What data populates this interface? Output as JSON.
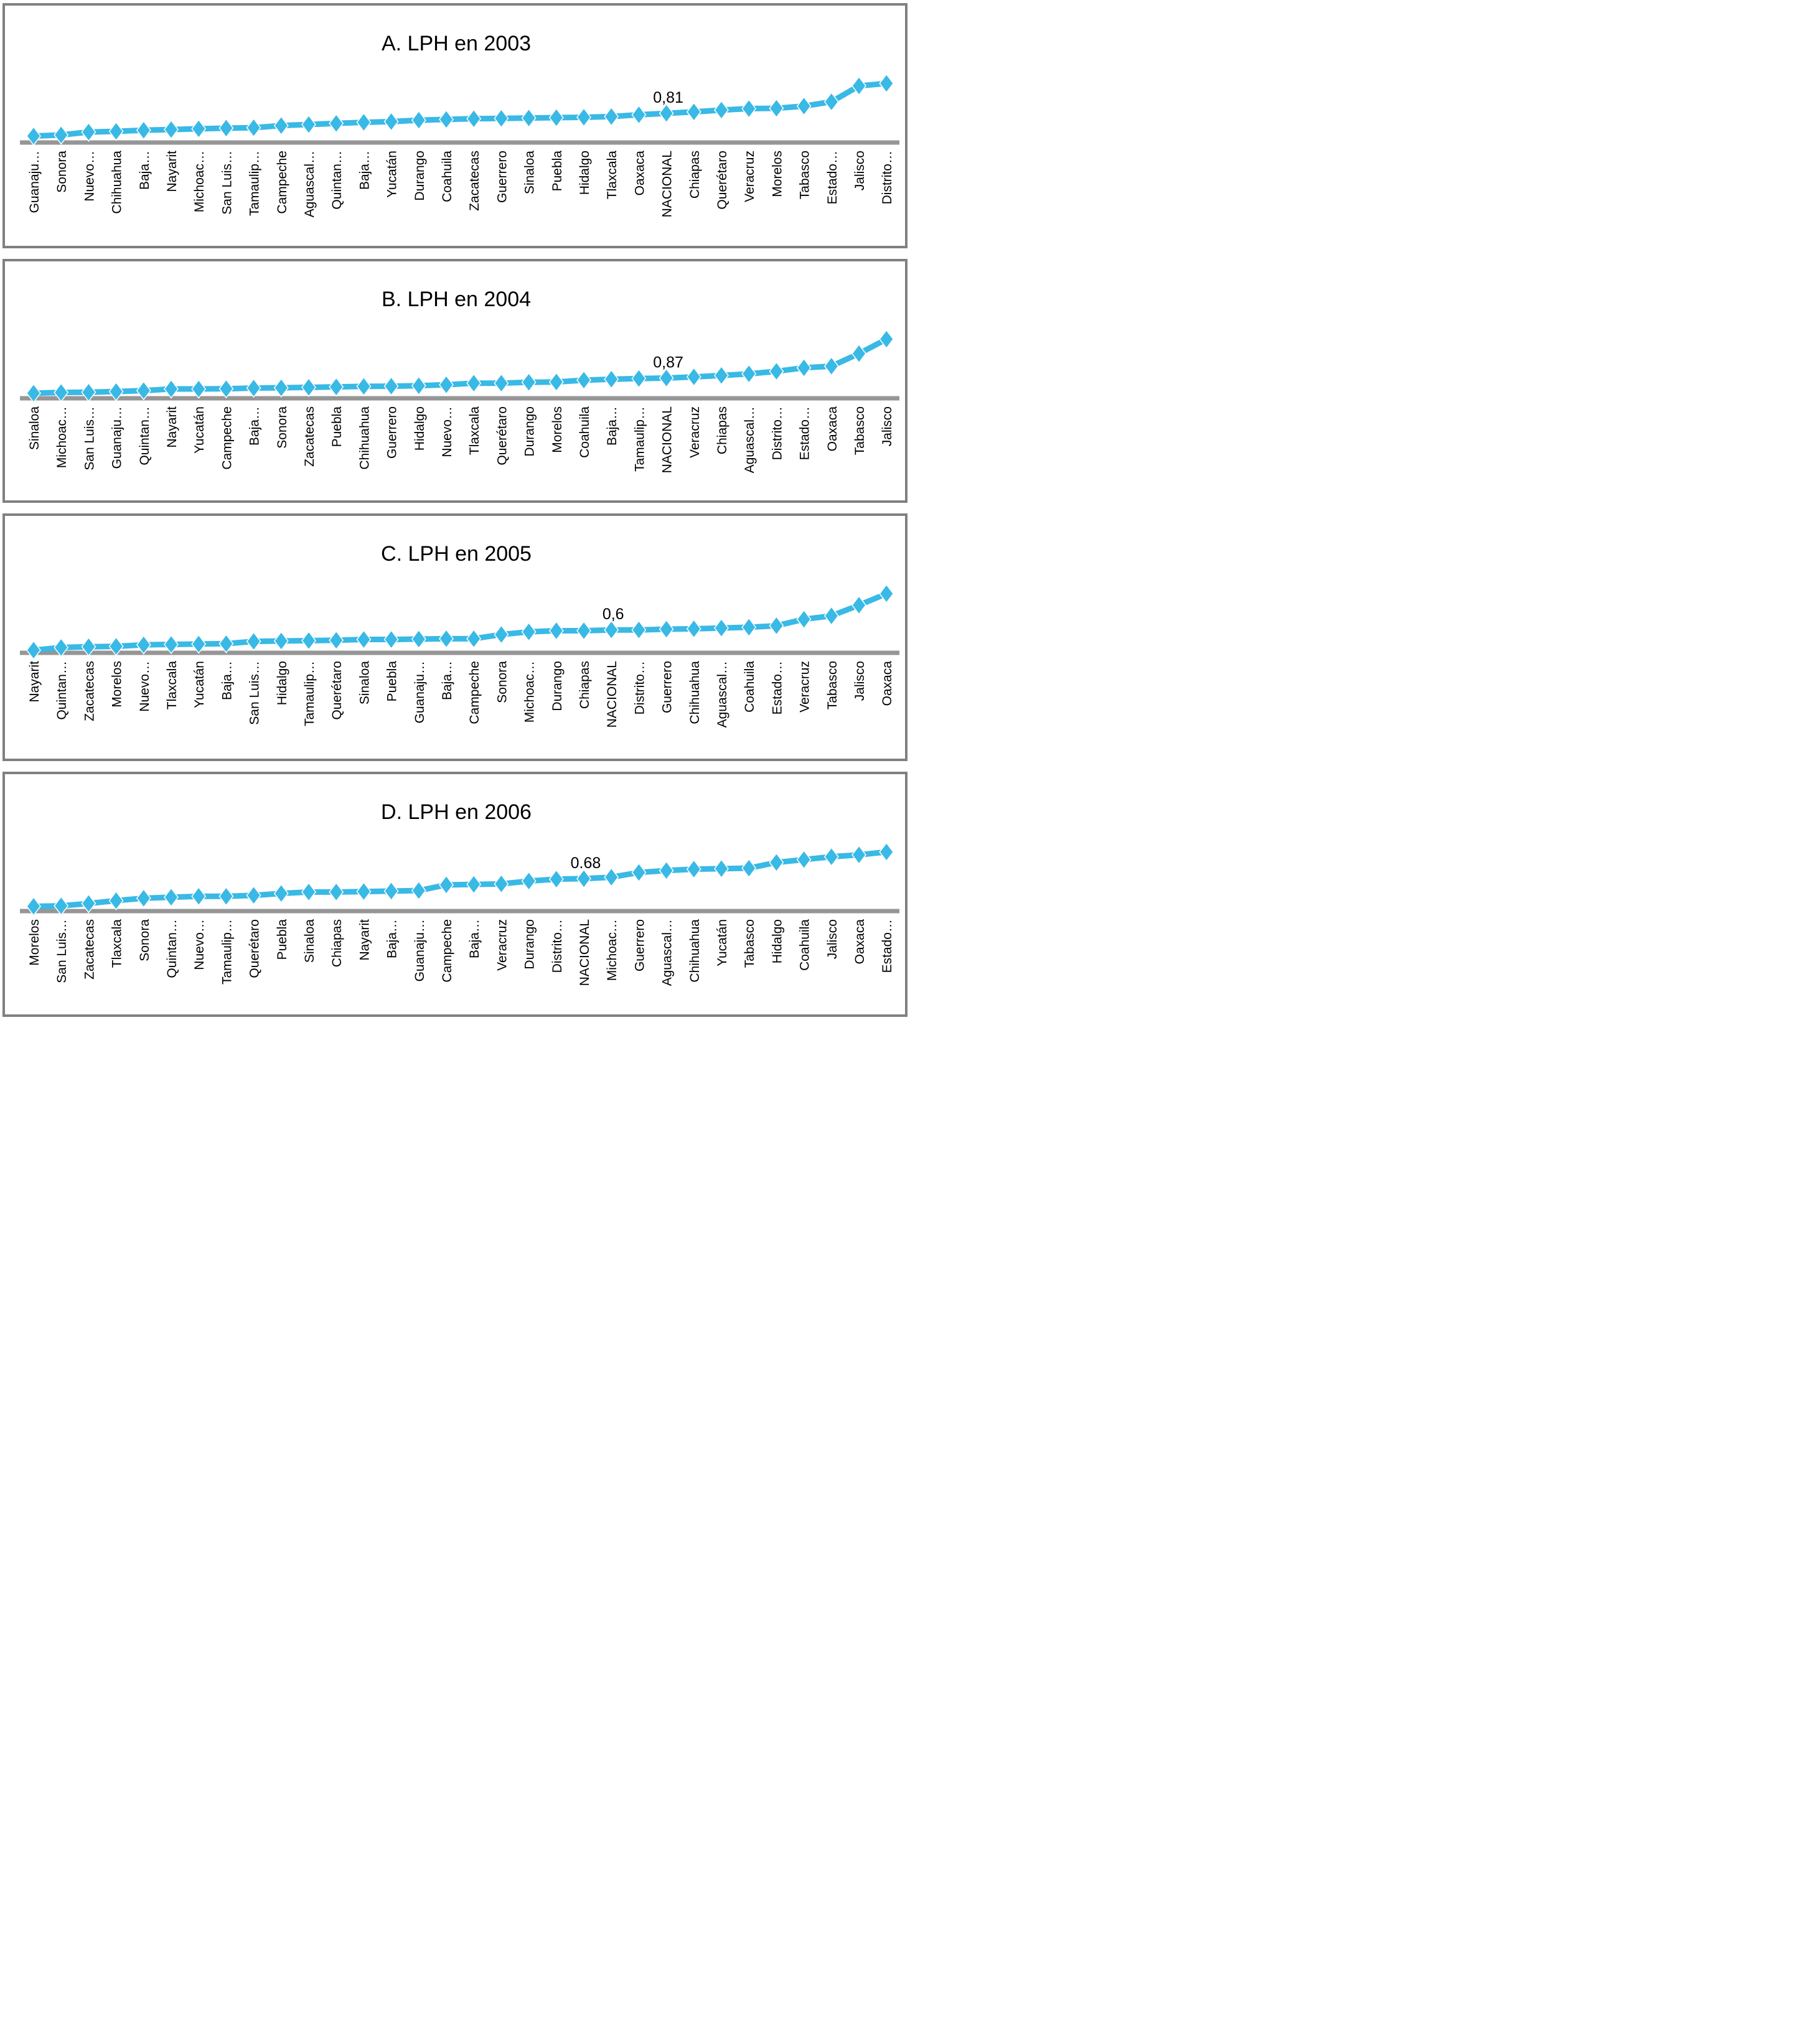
{
  "styles": {
    "line_color": "#39B9E5",
    "marker_outline": "#FFFFFF",
    "axis_color": "#969696",
    "panel_border_color": "#808080",
    "text_color": "#000000",
    "background": "#FFFFFF"
  },
  "chart_data": [
    {
      "type": "line",
      "title": "A. LPH en 2003",
      "xlabel": "",
      "ylabel": "",
      "ylim": [
        0,
        1.7
      ],
      "grid": false,
      "legend": "none",
      "marker": "diamond",
      "y_axis_visible": false,
      "data_label": {
        "text": "0,81",
        "category": "NACIONAL",
        "value": 0.81
      },
      "categories": [
        "Guanaju…",
        "Sonora",
        "Nuevo…",
        "Chihuahua",
        "Baja…",
        "Nayarit",
        "Michoac…",
        "San Luis…",
        "Tamaulip…",
        "Campeche",
        "Aguascal…",
        "Quintan…",
        "Baja…",
        "Yucatán",
        "Durango",
        "Coahuila",
        "Zacatecas",
        "Guerrero",
        "Sinaloa",
        "Puebla",
        "Hidalgo",
        "Tlaxcala",
        "Oaxaca",
        "NACIONAL",
        "Chiapas",
        "Querétaro",
        "Veracruz",
        "Morelos",
        "Tabasco",
        "Estado…",
        "Jalisco",
        "Distrito…"
      ],
      "values": [
        0.18,
        0.21,
        0.29,
        0.31,
        0.34,
        0.36,
        0.38,
        0.4,
        0.41,
        0.47,
        0.5,
        0.53,
        0.56,
        0.58,
        0.62,
        0.64,
        0.66,
        0.67,
        0.68,
        0.69,
        0.7,
        0.72,
        0.77,
        0.81,
        0.85,
        0.9,
        0.94,
        0.95,
        1.01,
        1.13,
        1.57,
        1.64
      ]
    },
    {
      "type": "line",
      "title": "B. LPH en 2004",
      "xlabel": "",
      "ylabel": "",
      "ylim": [
        0,
        2.6
      ],
      "grid": false,
      "legend": "none",
      "marker": "diamond",
      "y_axis_visible": false,
      "data_label": {
        "text": "0,87",
        "category": "NACIONAL",
        "value": 0.87
      },
      "categories": [
        "Sinaloa",
        "Michoac…",
        "San Luis…",
        "Guanaju…",
        "Quintan…",
        "Nayarit",
        "Yucatán",
        "Campeche",
        "Baja…",
        "Sonora",
        "Zacatecas",
        "Puebla",
        "Chihuahua",
        "Guerrero",
        "Hidalgo",
        "Nuevo…",
        "Tlaxcala",
        "Querétaro",
        "Durango",
        "Morelos",
        "Coahuila",
        "Baja…",
        "Tamaulip…",
        "NACIONAL",
        "Veracruz",
        "Chiapas",
        "Aguascal…",
        "Distrito…",
        "Estado…",
        "Oaxaca",
        "Tabasco",
        "Jalisco"
      ],
      "values": [
        0.22,
        0.25,
        0.26,
        0.29,
        0.33,
        0.4,
        0.4,
        0.41,
        0.44,
        0.45,
        0.47,
        0.49,
        0.51,
        0.52,
        0.54,
        0.58,
        0.65,
        0.65,
        0.69,
        0.7,
        0.78,
        0.82,
        0.85,
        0.87,
        0.92,
        0.98,
        1.05,
        1.16,
        1.31,
        1.38,
        1.92,
        2.54
      ]
    },
    {
      "type": "line",
      "title": "C. LPH en 2005",
      "xlabel": "",
      "ylabel": "",
      "ylim": [
        0,
        1.6
      ],
      "grid": false,
      "legend": "none",
      "marker": "diamond",
      "y_axis_visible": false,
      "data_label": {
        "text": "0,6",
        "category": "NACIONAL",
        "value": 0.6
      },
      "categories": [
        "Nayarit",
        "Quintan…",
        "Zacatecas",
        "Morelos",
        "Nuevo…",
        "Tlaxcala",
        "Yucatán",
        "Baja…",
        "San Luis…",
        "Hidalgo",
        "Tamaulip…",
        "Querétaro",
        "Sinaloa",
        "Puebla",
        "Guanaju…",
        "Baja…",
        "Campeche",
        "Sonora",
        "Michoac…",
        "Durango",
        "Chiapas",
        "NACIONAL",
        "Distrito…",
        "Guerrero",
        "Chihuahua",
        "Aguascal…",
        "Coahuila",
        "Estado…",
        "Veracruz",
        "Tabasco",
        "Jalisco",
        "Oaxaca"
      ],
      "values": [
        0.07,
        0.14,
        0.16,
        0.17,
        0.21,
        0.22,
        0.23,
        0.24,
        0.3,
        0.31,
        0.32,
        0.33,
        0.35,
        0.35,
        0.36,
        0.37,
        0.37,
        0.48,
        0.55,
        0.58,
        0.58,
        0.6,
        0.6,
        0.62,
        0.63,
        0.65,
        0.67,
        0.71,
        0.88,
        0.97,
        1.25,
        1.55
      ]
    },
    {
      "type": "line",
      "title": "D. LPH en 2006",
      "xlabel": "",
      "ylabel": "",
      "ylim": [
        0,
        1.3
      ],
      "grid": false,
      "legend": "none",
      "marker": "diamond",
      "y_axis_visible": false,
      "data_label": {
        "text": "0.68",
        "category": "NACIONAL",
        "value": 0.68
      },
      "categories": [
        "Morelos",
        "San Luis…",
        "Zacatecas",
        "Tlaxcala",
        "Sonora",
        "Quintan…",
        "Nuevo…",
        "Tamaulip…",
        "Querétaro",
        "Puebla",
        "Sinaloa",
        "Chiapas",
        "Nayarit",
        "Baja…",
        "Guanaju…",
        "Campeche",
        "Baja…",
        "Veracruz",
        "Durango",
        "Distrito…",
        "NACIONAL",
        "Michoac…",
        "Guerrero",
        "Aguascal…",
        "Chihuahua",
        "Yucatán",
        "Tabasco",
        "Hidalgo",
        "Coahuila",
        "Jalisco",
        "Oaxaca",
        "Estado…"
      ],
      "values": [
        0.1,
        0.11,
        0.16,
        0.22,
        0.27,
        0.29,
        0.31,
        0.31,
        0.33,
        0.37,
        0.4,
        0.4,
        0.41,
        0.42,
        0.43,
        0.55,
        0.56,
        0.57,
        0.63,
        0.67,
        0.68,
        0.71,
        0.81,
        0.85,
        0.88,
        0.89,
        0.9,
        1.02,
        1.08,
        1.14,
        1.18,
        1.24
      ]
    }
  ]
}
